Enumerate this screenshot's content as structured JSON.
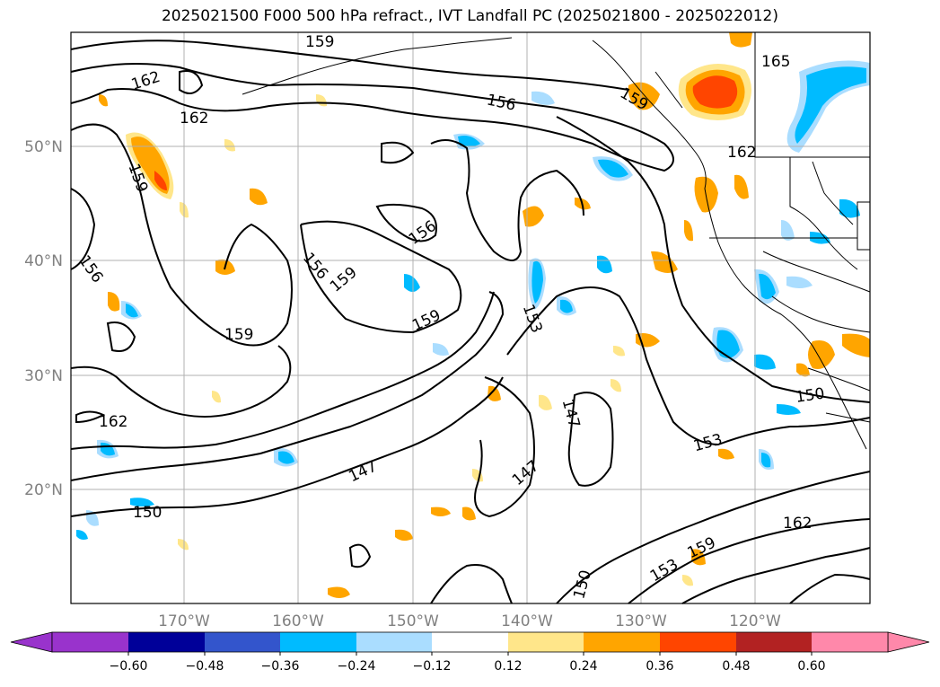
{
  "title": "2025021500 F000 500 hPa refract., IVT Landfall PC (2025021800 - 2025022012)",
  "map": {
    "lat_labels": [
      "50°N",
      "40°N",
      "30°N",
      "20°N"
    ],
    "lon_labels": [
      "170°W",
      "160°W",
      "150°W",
      "140°W",
      "130°W",
      "120°W"
    ],
    "contour_labels": [
      {
        "text": "159"
      },
      {
        "text": "162"
      },
      {
        "text": "162"
      },
      {
        "text": "165"
      },
      {
        "text": "156"
      },
      {
        "text": "159"
      },
      {
        "text": "162"
      },
      {
        "text": "159"
      },
      {
        "text": "156"
      },
      {
        "text": "156"
      },
      {
        "text": "159"
      },
      {
        "text": "156"
      },
      {
        "text": "159"
      },
      {
        "text": "159"
      },
      {
        "text": "153"
      },
      {
        "text": "162"
      },
      {
        "text": "147"
      },
      {
        "text": "147"
      },
      {
        "text": "147"
      },
      {
        "text": "150"
      },
      {
        "text": "153"
      },
      {
        "text": "150"
      },
      {
        "text": "162"
      },
      {
        "text": "153"
      },
      {
        "text": "159"
      },
      {
        "text": "150"
      }
    ]
  },
  "colorbar": {
    "ticks": [
      "−0.60",
      "−0.48",
      "−0.36",
      "−0.24",
      "−0.12",
      "0.12",
      "0.24",
      "0.36",
      "0.48",
      "0.60"
    ],
    "colors": [
      "#9933cc",
      "#000099",
      "#3355cc",
      "#00bbff",
      "#aaddff",
      "#ffffff",
      "#ffe68a",
      "#ffa500",
      "#ff4500",
      "#b22222",
      "#ff88aa"
    ]
  }
}
